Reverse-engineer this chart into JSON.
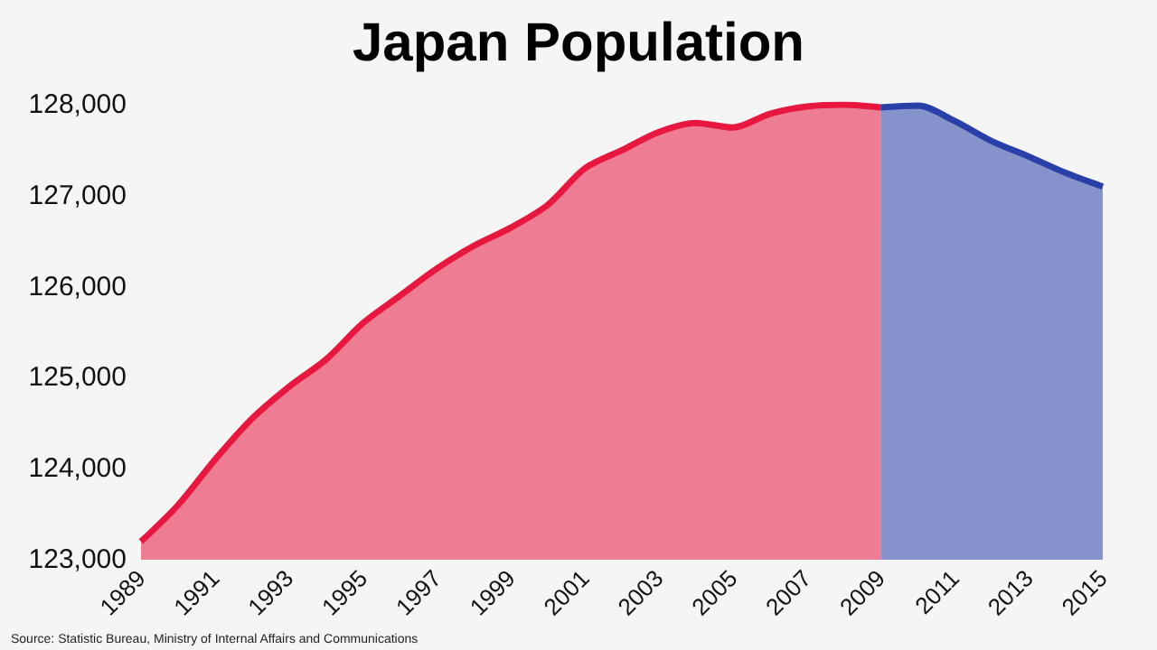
{
  "chart_data": {
    "type": "area",
    "title": "Japan Population",
    "annotations": [
      "Source: Statistic Bureau, Ministry of Internal Affairs and Communications"
    ],
    "series": [
      {
        "color": "#e8173f",
        "x": [
          1989,
          1990,
          1991,
          1992,
          1993,
          1994,
          1995,
          1996,
          1997,
          1998,
          1999,
          2000,
          2001,
          2002,
          2003,
          2004,
          2005,
          2006,
          2007,
          2008,
          2009
        ],
        "values": [
          123200,
          123600,
          124100,
          124550,
          124900,
          125200,
          125600,
          125900,
          126200,
          126450,
          126650,
          126900,
          127300,
          127500,
          127700,
          127800,
          127750,
          127900,
          127980,
          128000,
          127970
        ]
      },
      {
        "color": "#2a3fa8",
        "x": [
          2009,
          2010,
          2011,
          2012,
          2013,
          2014,
          2015
        ],
        "values": [
          127970,
          127990,
          127820,
          127600,
          127430,
          127250,
          127100
        ]
      }
    ],
    "xlim": [
      1989,
      2015
    ],
    "xticks": [
      1989,
      1991,
      1993,
      1995,
      1997,
      1999,
      2001,
      2003,
      2005,
      2007,
      2009,
      2011,
      2013,
      2015
    ],
    "ylim": [
      123000,
      128000
    ],
    "yticks": [
      {
        "value": 123000,
        "label": "123,000"
      },
      {
        "value": 124000,
        "label": "124,000"
      },
      {
        "value": 125000,
        "label": "125,000"
      },
      {
        "value": 126000,
        "label": "126,000"
      },
      {
        "value": 127000,
        "label": "127,000"
      },
      {
        "value": 128000,
        "label": "128,000"
      }
    ],
    "grid": false,
    "marker": "none"
  }
}
